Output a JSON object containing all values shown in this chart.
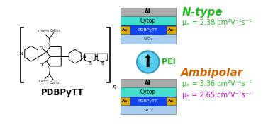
{
  "bg_color": "#ffffff",
  "ntype_label": "N-type",
  "ntype_color": "#22bb22",
  "mu_e_ntype": "μₑ = 2.38 cm²V⁻¹s⁻¹",
  "mu_e_ntype_color": "#22bb22",
  "ambipolar_label": "Ambipolar",
  "ambipolar_color": "#cc6600",
  "mu_e_ambipolar": "μₑ = 3.36 cm²V⁻¹s⁻¹",
  "mu_e_ambipolar_color": "#22bb22",
  "mu_h_ambipolar": "μₕ = 2.65 cm²V⁻¹s⁻¹",
  "mu_h_ambipolar_color": "#cc00cc",
  "pei_label": "PEI",
  "pei_color": "#22bb22",
  "al_color": "#aaaaaa",
  "cytop_color": "#44ddcc",
  "polymer_color": "#1144ee",
  "au_color": "#ddaa00",
  "sio2_color": "#aaccee",
  "si_color": "#bbccdd",
  "arrow_circle_color": "#55ccee",
  "arrow_circle_edge": "#3399bb",
  "polymer_label": "PDBPyTT",
  "title_label": "PDBPyTT"
}
